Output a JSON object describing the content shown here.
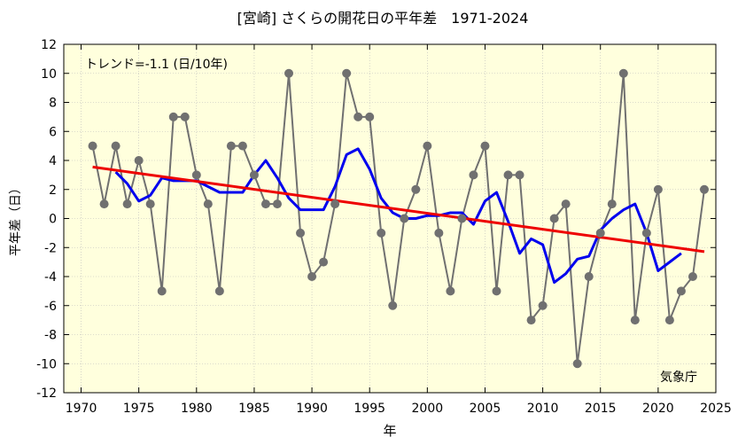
{
  "chart_data": {
    "type": "line",
    "title": "[宮崎] さくらの開花日の平年差　1971-2024",
    "xlabel": "年",
    "ylabel": "平年差（日）",
    "trend_label": "トレンド=-1.1 (日/10年)",
    "source_label": "気象庁",
    "xlim": [
      1968.5,
      2025
    ],
    "ylim": [
      -12,
      12
    ],
    "x_ticks": [
      1970,
      1975,
      1980,
      1985,
      1990,
      1995,
      2000,
      2005,
      2010,
      2015,
      2020,
      2025
    ],
    "y_ticks": [
      -12,
      -10,
      -8,
      -6,
      -4,
      -2,
      0,
      2,
      4,
      6,
      8,
      10,
      12
    ],
    "grid": true,
    "colors": {
      "background": "#ffffdd",
      "grid": "#bbbbbb",
      "annual": "#707070",
      "moving_average": "#0000ee",
      "trend": "#ee0000"
    },
    "series": [
      {
        "role": "annual",
        "x": [
          1971,
          1972,
          1973,
          1974,
          1975,
          1976,
          1977,
          1978,
          1979,
          1980,
          1981,
          1982,
          1983,
          1984,
          1985,
          1986,
          1987,
          1988,
          1989,
          1990,
          1991,
          1992,
          1993,
          1994,
          1995,
          1996,
          1997,
          1998,
          1999,
          2000,
          2001,
          2002,
          2003,
          2004,
          2005,
          2006,
          2007,
          2008,
          2009,
          2010,
          2011,
          2012,
          2013,
          2014,
          2015,
          2016,
          2017,
          2018,
          2019,
          2020,
          2021,
          2022,
          2023,
          2024
        ],
        "values": [
          5,
          1,
          5,
          1,
          4,
          1,
          -5,
          7,
          7,
          3,
          1,
          -5,
          5,
          5,
          3,
          1,
          1,
          10,
          -1,
          -4,
          -3,
          1,
          10,
          7,
          7,
          -1,
          -6,
          0,
          2,
          5,
          -1,
          -5,
          0,
          3,
          5,
          -5,
          3,
          3,
          -7,
          -6,
          0,
          1,
          -10,
          -4,
          -1,
          1,
          10,
          -7,
          -1,
          2,
          -7,
          -5,
          -4,
          2
        ]
      },
      {
        "role": "moving_average",
        "x": [
          1973,
          1974,
          1975,
          1976,
          1977,
          1978,
          1979,
          1980,
          1981,
          1982,
          1983,
          1984,
          1985,
          1986,
          1987,
          1988,
          1989,
          1990,
          1991,
          1992,
          1993,
          1994,
          1995,
          1996,
          1997,
          1998,
          1999,
          2000,
          2001,
          2002,
          2003,
          2004,
          2005,
          2006,
          2007,
          2008,
          2009,
          2010,
          2011,
          2012,
          2013,
          2014,
          2015,
          2016,
          2017,
          2018,
          2019,
          2020,
          2021,
          2022
        ],
        "values": [
          3.2,
          2.4,
          1.2,
          1.6,
          2.8,
          2.6,
          2.6,
          2.6,
          2.2,
          1.8,
          1.8,
          1.8,
          3.0,
          4.0,
          2.8,
          1.4,
          0.6,
          0.6,
          0.6,
          2.2,
          4.4,
          4.8,
          3.4,
          1.4,
          0.4,
          0.0,
          0.0,
          0.2,
          0.2,
          0.4,
          0.4,
          -0.4,
          1.2,
          1.8,
          -0.2,
          -2.4,
          -1.4,
          -1.8,
          -4.4,
          -3.8,
          -2.8,
          -2.6,
          -0.8,
          0.0,
          0.6,
          1.0,
          -1.0,
          -3.6,
          -3.0,
          -2.4
        ]
      },
      {
        "role": "trend",
        "x": [
          1971,
          2024
        ],
        "values": [
          3.55,
          -2.28
        ]
      }
    ]
  }
}
